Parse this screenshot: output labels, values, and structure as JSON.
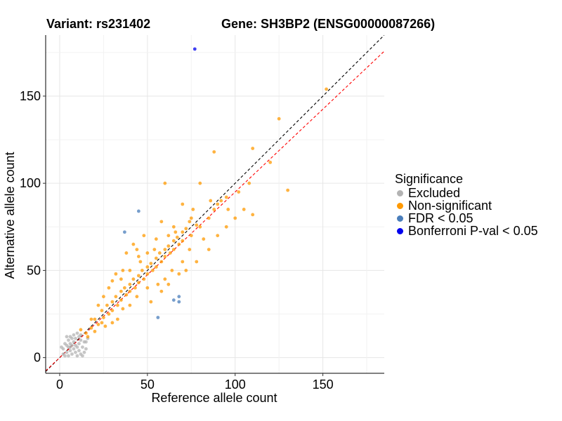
{
  "titles": {
    "variant": "Variant: rs231402",
    "gene": "Gene: SH3BP2 (ENSG00000087266)"
  },
  "chart_data": {
    "type": "scatter",
    "xlabel": "Reference allele count",
    "ylabel": "Alternative allele count",
    "xlim": [
      -8,
      185
    ],
    "ylim": [
      -9,
      185
    ],
    "xticks": [
      0,
      50,
      100,
      150
    ],
    "yticks": [
      0,
      50,
      100,
      150
    ],
    "grid": true,
    "reference_lines": [
      {
        "kind": "identity",
        "slope": 1,
        "intercept": 0,
        "color": "#000000",
        "style": "dashed"
      },
      {
        "kind": "fit",
        "slope": 0.95,
        "intercept": 0,
        "color": "#ff0000",
        "style": "dashed"
      }
    ],
    "legend": {
      "title": "Significance",
      "position": "right",
      "items": [
        {
          "label": "Excluded",
          "color": "#b3b3b3"
        },
        {
          "label": "Non-significant",
          "color": "#ff9900"
        },
        {
          "label": "FDR < 0.05",
          "color": "#4a7ebb"
        },
        {
          "label": "Bonferroni P-val < 0.05",
          "color": "#0000ee"
        }
      ]
    },
    "series": [
      {
        "name": "Excluded",
        "color": "#b3b3b3",
        "points": [
          [
            2,
            5
          ],
          [
            3,
            8
          ],
          [
            4,
            3
          ],
          [
            5,
            6
          ],
          [
            5,
            10
          ],
          [
            6,
            4
          ],
          [
            6,
            12
          ],
          [
            7,
            7
          ],
          [
            7,
            2
          ],
          [
            8,
            9
          ],
          [
            8,
            5
          ],
          [
            9,
            3
          ],
          [
            9,
            11
          ],
          [
            10,
            6
          ],
          [
            10,
            14
          ],
          [
            11,
            8
          ],
          [
            11,
            4
          ],
          [
            12,
            10
          ],
          [
            12,
            2
          ],
          [
            13,
            6
          ],
          [
            14,
            9
          ],
          [
            15,
            5
          ],
          [
            4,
            12
          ],
          [
            3,
            1
          ],
          [
            1,
            6
          ],
          [
            6,
            8
          ],
          [
            8,
            13
          ],
          [
            10,
            1
          ],
          [
            12,
            13
          ],
          [
            14,
            3
          ],
          [
            2,
            2
          ],
          [
            5,
            1
          ],
          [
            7,
            11
          ],
          [
            9,
            7
          ],
          [
            11,
            12
          ],
          [
            13,
            1
          ],
          [
            6,
            6
          ],
          [
            4,
            7
          ],
          [
            15,
            9
          ],
          [
            16,
            11
          ]
        ]
      },
      {
        "name": "Non-significant",
        "color": "#ff9900",
        "points": [
          [
            15,
            14
          ],
          [
            18,
            17
          ],
          [
            20,
            22
          ],
          [
            22,
            19
          ],
          [
            24,
            27
          ],
          [
            25,
            23
          ],
          [
            27,
            30
          ],
          [
            28,
            25
          ],
          [
            30,
            32
          ],
          [
            30,
            27
          ],
          [
            32,
            35
          ],
          [
            33,
            30
          ],
          [
            35,
            38
          ],
          [
            35,
            33
          ],
          [
            37,
            40
          ],
          [
            38,
            36
          ],
          [
            40,
            42
          ],
          [
            40,
            38
          ],
          [
            42,
            45
          ],
          [
            43,
            40
          ],
          [
            45,
            47
          ],
          [
            45,
            43
          ],
          [
            47,
            50
          ],
          [
            48,
            45
          ],
          [
            50,
            52
          ],
          [
            50,
            48
          ],
          [
            52,
            54
          ],
          [
            53,
            50
          ],
          [
            55,
            57
          ],
          [
            55,
            52
          ],
          [
            57,
            60
          ],
          [
            58,
            55
          ],
          [
            60,
            62
          ],
          [
            60,
            58
          ],
          [
            62,
            64
          ],
          [
            63,
            60
          ],
          [
            65,
            67
          ],
          [
            65,
            62
          ],
          [
            67,
            69
          ],
          [
            68,
            65
          ],
          [
            70,
            72
          ],
          [
            70,
            67
          ],
          [
            72,
            74
          ],
          [
            75,
            70
          ],
          [
            78,
            76
          ],
          [
            80,
            75
          ],
          [
            85,
            80
          ],
          [
            88,
            85
          ],
          [
            90,
            88
          ],
          [
            92,
            90
          ],
          [
            95,
            92
          ],
          [
            100,
            80
          ],
          [
            105,
            85
          ],
          [
            110,
            82
          ],
          [
            130,
            96
          ],
          [
            125,
            137
          ],
          [
            152,
            154
          ],
          [
            60,
            100
          ],
          [
            80,
            100
          ],
          [
            88,
            118
          ],
          [
            110,
            120
          ],
          [
            20,
            15
          ],
          [
            25,
            35
          ],
          [
            30,
            20
          ],
          [
            35,
            45
          ],
          [
            40,
            30
          ],
          [
            45,
            58
          ],
          [
            50,
            40
          ],
          [
            55,
            68
          ],
          [
            60,
            45
          ],
          [
            65,
            75
          ],
          [
            70,
            55
          ],
          [
            75,
            80
          ],
          [
            38,
            60
          ],
          [
            42,
            65
          ],
          [
            48,
            70
          ],
          [
            52,
            32
          ],
          [
            58,
            38
          ],
          [
            62,
            42
          ],
          [
            68,
            48
          ],
          [
            72,
            50
          ],
          [
            78,
            55
          ],
          [
            85,
            62
          ],
          [
            90,
            70
          ],
          [
            95,
            75
          ],
          [
            22,
            30
          ],
          [
            26,
            18
          ],
          [
            33,
            22
          ],
          [
            36,
            28
          ],
          [
            44,
            35
          ],
          [
            46,
            55
          ],
          [
            54,
            62
          ],
          [
            56,
            42
          ],
          [
            64,
            50
          ],
          [
            66,
            72
          ],
          [
            74,
            62
          ],
          [
            76,
            85
          ],
          [
            82,
            68
          ],
          [
            18,
            22
          ],
          [
            16,
            12
          ],
          [
            12,
            16
          ],
          [
            28,
            40
          ],
          [
            32,
            48
          ],
          [
            40,
            50
          ],
          [
            44,
            62
          ],
          [
            58,
            78
          ],
          [
            70,
            88
          ],
          [
            30,
            44
          ],
          [
            24,
            20
          ],
          [
            36,
            50
          ],
          [
            50,
            60
          ],
          [
            62,
            70
          ],
          [
            74,
            78
          ],
          [
            86,
            90
          ],
          [
            96,
            85
          ],
          [
            102,
            95
          ],
          [
            108,
            100
          ],
          [
            120,
            112
          ]
        ]
      },
      {
        "name": "FDR < 0.05",
        "color": "#4a7ebb",
        "points": [
          [
            45,
            84
          ],
          [
            37,
            72
          ],
          [
            65,
            33
          ],
          [
            68,
            35
          ],
          [
            68,
            32
          ],
          [
            56,
            23
          ]
        ]
      },
      {
        "name": "Bonferroni P-val < 0.05",
        "color": "#0000ee",
        "points": [
          [
            77,
            177
          ]
        ]
      }
    ]
  }
}
